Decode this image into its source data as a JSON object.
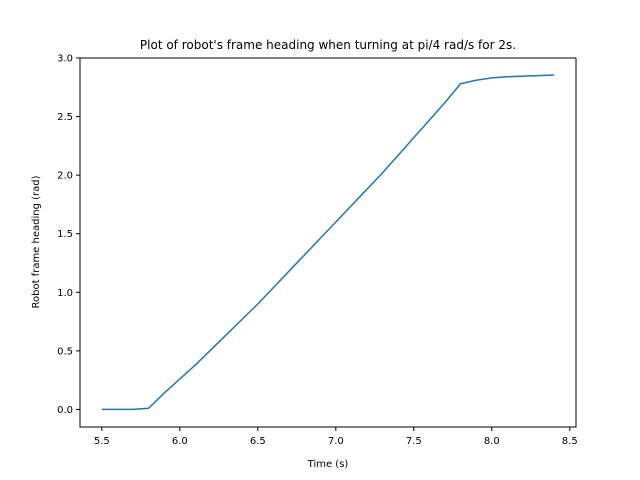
{
  "chart_data": {
    "type": "line",
    "title": "Plot of robot's frame heading when turning at pi/4 rad/s for 2s.",
    "xlabel": "Time (s)",
    "ylabel": "Robot frame heading (rad)",
    "xlim": [
      5.36,
      8.54
    ],
    "ylim": [
      -0.15,
      3.0
    ],
    "xticks": [
      5.5,
      6.0,
      6.5,
      7.0,
      7.5,
      8.0,
      8.5
    ],
    "xtick_labels": [
      "5.5",
      "6.0",
      "6.5",
      "7.0",
      "7.5",
      "8.0",
      "8.5"
    ],
    "yticks": [
      0.0,
      0.5,
      1.0,
      1.5,
      2.0,
      2.5,
      3.0
    ],
    "ytick_labels": [
      "0.0",
      "0.5",
      "1.0",
      "1.5",
      "2.0",
      "2.5",
      "3.0"
    ],
    "grid": false,
    "series": [
      {
        "color": "#1f77b4",
        "x": [
          5.5,
          5.6,
          5.7,
          5.8,
          5.9,
          6.0,
          6.1,
          6.2,
          6.3,
          6.4,
          6.5,
          6.6,
          6.7,
          6.8,
          6.9,
          7.0,
          7.1,
          7.2,
          7.3,
          7.4,
          7.5,
          7.6,
          7.7,
          7.8,
          7.9,
          8.0,
          8.1,
          8.2,
          8.3,
          8.4
        ],
        "y": [
          0.0,
          0.0,
          0.0,
          0.01,
          0.14,
          0.26,
          0.38,
          0.51,
          0.64,
          0.77,
          0.9,
          1.04,
          1.18,
          1.32,
          1.46,
          1.6,
          1.74,
          1.88,
          2.02,
          2.17,
          2.32,
          2.47,
          2.62,
          2.78,
          2.81,
          2.83,
          2.84,
          2.845,
          2.85,
          2.855
        ]
      }
    ]
  }
}
